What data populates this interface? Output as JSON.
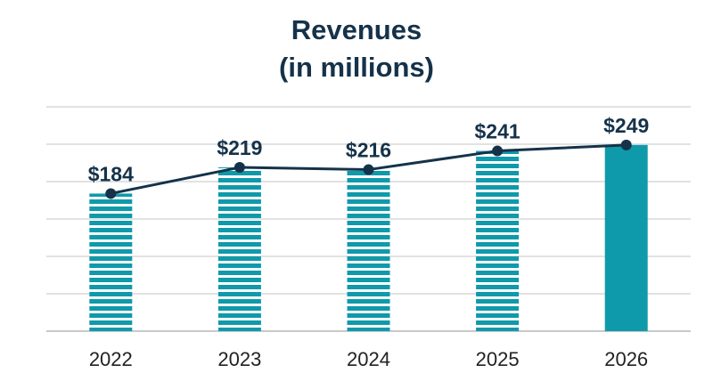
{
  "chart_data": {
    "type": "bar",
    "title": "Revenues",
    "subtitle": "(in millions)",
    "xlabel": "",
    "ylabel": "",
    "categories": [
      "2022",
      "2023",
      "2024",
      "2025",
      "2026"
    ],
    "values": [
      184,
      219,
      216,
      241,
      249
    ],
    "data_labels": [
      "$184",
      "$219",
      "$216",
      "$241",
      "$249"
    ],
    "ylim": [
      0,
      300
    ],
    "grid": true,
    "legend": "none",
    "overlay_line": true,
    "bar_style": [
      "striped",
      "striped",
      "striped",
      "striped",
      "solid"
    ],
    "colors": {
      "bar": "#0e9aaa",
      "line": "#15324a",
      "grid": "#d8d8d8",
      "text": "#15324a"
    }
  }
}
